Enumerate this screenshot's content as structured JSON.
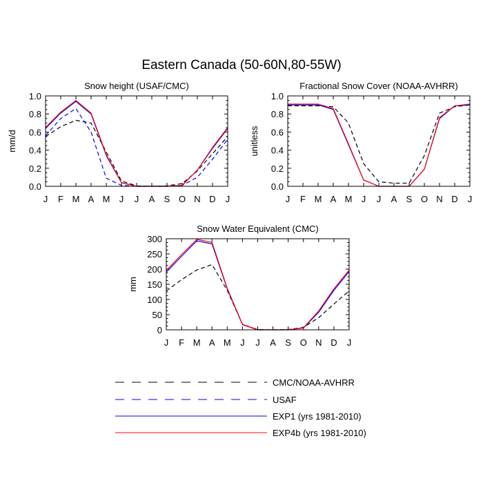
{
  "title": "Eastern Canada (50-60N,80-55W)",
  "months": [
    "J",
    "F",
    "M",
    "A",
    "M",
    "J",
    "J",
    "A",
    "S",
    "O",
    "N",
    "D",
    "J"
  ],
  "series_style": {
    "CMC/NOAA-AVHRR": {
      "color": "#000000",
      "dash": "6,4"
    },
    "USAF": {
      "color": "#0000ff",
      "dash": "6,4"
    },
    "EXP1 (yrs 1981-2010)": {
      "color": "#0000ff",
      "dash": ""
    },
    "EXP4b (yrs 1981-2010)": {
      "color": "#ff0000",
      "dash": ""
    }
  },
  "legend": {
    "position": "bottom-center",
    "entries": [
      "CMC/NOAA-AVHRR",
      "USAF",
      "EXP1 (yrs 1981-2010)",
      "EXP4b (yrs 1981-2010)"
    ]
  },
  "chart_data": [
    {
      "type": "line",
      "title": "Snow height (USAF/CMC)",
      "ylabel": "mm/d",
      "xlabel": "",
      "categories": [
        "J",
        "F",
        "M",
        "A",
        "M",
        "J",
        "J",
        "A",
        "S",
        "O",
        "N",
        "D",
        "J"
      ],
      "ylim": [
        0,
        1.0
      ],
      "yticks": [
        0.0,
        0.2,
        0.4,
        0.6,
        0.8,
        1.0
      ],
      "ytick_labels": [
        "0.0",
        "0.2",
        "0.4",
        "0.6",
        "0.8",
        "1.0"
      ],
      "grid": false,
      "series": [
        {
          "name": "CMC/NOAA-AVHRR",
          "values": [
            0.55,
            0.66,
            0.73,
            0.7,
            0.38,
            0.06,
            0.005,
            0.0,
            0.005,
            0.03,
            0.17,
            0.36,
            0.55
          ]
        },
        {
          "name": "USAF",
          "values": [
            0.56,
            0.75,
            0.86,
            0.6,
            0.09,
            0.01,
            0.0,
            0.0,
            0.0,
            0.01,
            0.1,
            0.3,
            0.52
          ]
        },
        {
          "name": "EXP1 (yrs 1981-2010)",
          "values": [
            0.64,
            0.81,
            0.94,
            0.8,
            0.34,
            0.04,
            0.0,
            0.0,
            0.0,
            0.01,
            0.18,
            0.42,
            0.64
          ]
        },
        {
          "name": "EXP4b (yrs 1981-2010)",
          "values": [
            0.65,
            0.82,
            0.95,
            0.81,
            0.35,
            0.04,
            0.0,
            0.0,
            0.0,
            0.01,
            0.18,
            0.43,
            0.65
          ]
        }
      ]
    },
    {
      "type": "line",
      "title": "Fractional Snow Cover (NOAA-AVHRR)",
      "ylabel": "unitless",
      "xlabel": "",
      "categories": [
        "J",
        "F",
        "M",
        "A",
        "M",
        "J",
        "J",
        "A",
        "S",
        "O",
        "N",
        "D",
        "J"
      ],
      "ylim": [
        0,
        1.0
      ],
      "yticks": [
        0.0,
        0.2,
        0.4,
        0.6,
        0.8,
        1.0
      ],
      "ytick_labels": [
        "0.0",
        "0.2",
        "0.4",
        "0.6",
        "0.8",
        "1.0"
      ],
      "grid": false,
      "series": [
        {
          "name": "CMC/NOAA-AVHRR",
          "values": [
            0.89,
            0.89,
            0.89,
            0.88,
            0.7,
            0.25,
            0.05,
            0.035,
            0.035,
            0.34,
            0.81,
            0.88,
            0.9
          ]
        },
        {
          "name": "EXP1 (yrs 1981-2010)",
          "values": [
            0.9,
            0.9,
            0.9,
            0.85,
            0.46,
            0.07,
            0.0,
            0.0,
            0.0,
            0.19,
            0.75,
            0.89,
            0.9
          ]
        },
        {
          "name": "EXP4b (yrs 1981-2010)",
          "values": [
            0.91,
            0.91,
            0.91,
            0.86,
            0.47,
            0.07,
            0.0,
            0.0,
            0.0,
            0.19,
            0.76,
            0.89,
            0.91
          ]
        }
      ]
    },
    {
      "type": "line",
      "title": "Snow Water Equivalent (CMC)",
      "ylabel": "mm",
      "xlabel": "",
      "categories": [
        "J",
        "F",
        "M",
        "A",
        "M",
        "J",
        "J",
        "A",
        "S",
        "O",
        "N",
        "D",
        "J"
      ],
      "ylim": [
        0,
        300
      ],
      "yticks": [
        0,
        50,
        100,
        150,
        200,
        250,
        300
      ],
      "ytick_labels": [
        "0",
        "50",
        "100",
        "150",
        "200",
        "250",
        "300"
      ],
      "grid": false,
      "series": [
        {
          "name": "CMC/NOAA-AVHRR",
          "values": [
            128,
            165,
            197,
            215,
            130,
            18,
            1,
            0,
            1,
            8,
            40,
            85,
            128
          ]
        },
        {
          "name": "EXP1 (yrs 1981-2010)",
          "values": [
            190,
            242,
            293,
            283,
            135,
            17,
            0,
            0,
            0,
            6,
            58,
            130,
            192
          ]
        },
        {
          "name": "EXP4b (yrs 1981-2010)",
          "values": [
            195,
            248,
            298,
            288,
            137,
            18,
            0,
            0,
            0,
            7,
            62,
            135,
            197
          ]
        }
      ]
    }
  ]
}
